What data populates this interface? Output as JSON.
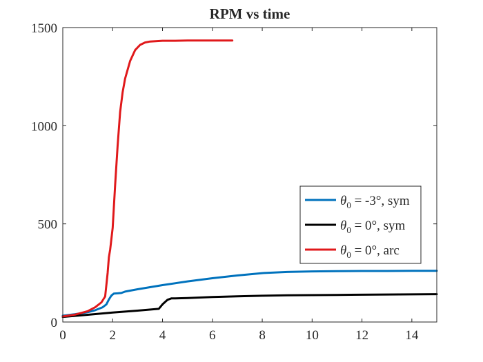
{
  "chart_data": {
    "type": "line",
    "title": "RPM vs time",
    "xlabel": "",
    "ylabel": "",
    "xlim": [
      0,
      15
    ],
    "ylim": [
      0,
      1500
    ],
    "xticks": [
      0,
      2,
      4,
      6,
      8,
      10,
      12,
      14
    ],
    "yticks": [
      0,
      500,
      1000,
      1500
    ],
    "grid": false,
    "legend": "lower-right",
    "series": [
      {
        "name": "= -3°, sym",
        "legend_symbol": "θ",
        "legend_subscript": "0",
        "color": "#0072BD",
        "x": [
          0,
          0.5,
          1.0,
          1.3,
          1.6,
          1.75,
          1.85,
          1.95,
          2.05,
          2.2,
          2.35,
          2.5,
          3,
          4,
          5,
          6,
          7,
          8,
          9,
          10,
          11,
          12,
          13,
          14,
          15
        ],
        "y": [
          32,
          40,
          50,
          60,
          75,
          90,
          115,
          135,
          145,
          146,
          148,
          155,
          167,
          188,
          207,
          223,
          237,
          249,
          255,
          258,
          259,
          260,
          260,
          261,
          261
        ]
      },
      {
        "name": "= 0°, sym",
        "legend_symbol": "θ",
        "legend_subscript": "0",
        "color": "#000000",
        "x": [
          0,
          1,
          2,
          3,
          3.85,
          4.0,
          4.2,
          4.35,
          4.5,
          5,
          6,
          7,
          8,
          9,
          10,
          11,
          12,
          13,
          14,
          15
        ],
        "y": [
          26,
          37,
          48,
          58,
          67,
          90,
          113,
          120,
          120,
          122,
          127,
          131,
          134,
          136,
          137,
          138,
          139,
          140,
          141,
          142
        ]
      },
      {
        "name": "= 0°, arc",
        "legend_symbol": "θ",
        "legend_subscript": "0",
        "color": "#E0191B",
        "x": [
          0,
          0.5,
          1.0,
          1.3,
          1.55,
          1.7,
          1.8,
          1.85,
          1.9,
          2.0,
          2.1,
          2.2,
          2.3,
          2.4,
          2.5,
          2.7,
          2.9,
          3.1,
          3.3,
          3.5,
          4.0,
          4.5,
          5,
          6,
          6.8
        ],
        "y": [
          28,
          38,
          55,
          75,
          100,
          130,
          250,
          330,
          370,
          480,
          700,
          900,
          1070,
          1170,
          1240,
          1330,
          1385,
          1412,
          1424,
          1429,
          1433,
          1433,
          1434,
          1434,
          1434
        ]
      }
    ]
  }
}
